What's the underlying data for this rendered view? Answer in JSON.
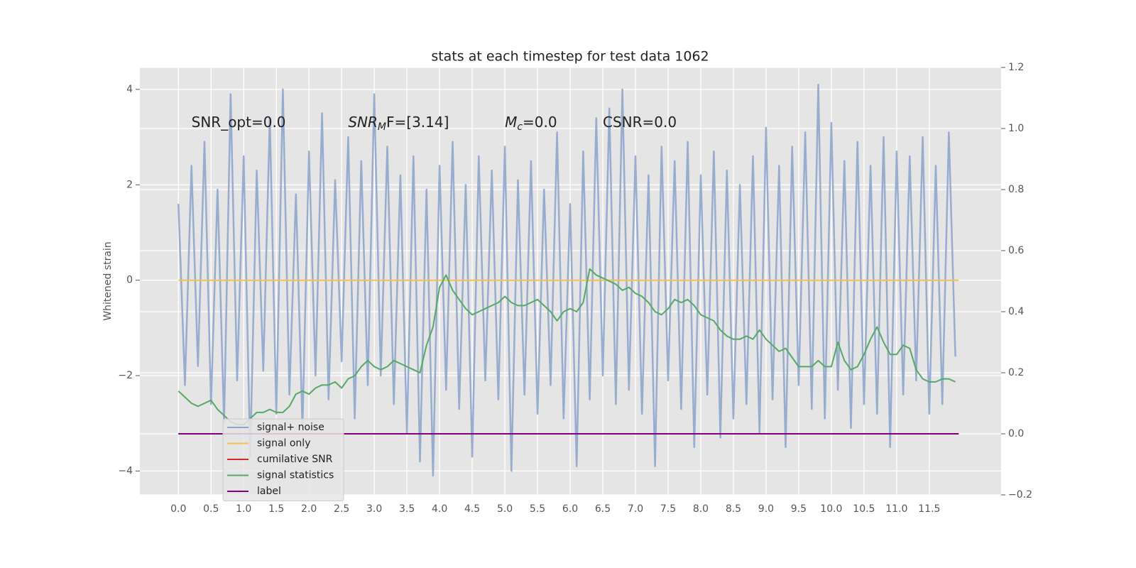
{
  "chart_data": {
    "type": "line",
    "title": "stats at each timestep for test data 1062",
    "ylabel": "Whitened strain",
    "annotations": [
      [
        "SNR_opt=0.0"
      ],
      [
        "SNR",
        "M",
        "F=[3.14]"
      ],
      [
        "M",
        "c",
        "=0.0"
      ],
      [
        "CSNR=0.0"
      ]
    ],
    "x": [
      0,
      0.1,
      0.2,
      0.3,
      0.4,
      0.5,
      0.6,
      0.7,
      0.8,
      0.9,
      1,
      1.1,
      1.2,
      1.3,
      1.4,
      1.5,
      1.6,
      1.7,
      1.8,
      1.9,
      2,
      2.1,
      2.2,
      2.3,
      2.4,
      2.5,
      2.6,
      2.7,
      2.8,
      2.9,
      3,
      3.1,
      3.2,
      3.3,
      3.4,
      3.5,
      3.6,
      3.7,
      3.8,
      3.9,
      4,
      4.1,
      4.2,
      4.3,
      4.4,
      4.5,
      4.6,
      4.7,
      4.8,
      4.9,
      5,
      5.1,
      5.2,
      5.3,
      5.4,
      5.5,
      5.6,
      5.7,
      5.8,
      5.9,
      6,
      6.1,
      6.2,
      6.3,
      6.4,
      6.5,
      6.6,
      6.7,
      6.8,
      6.9,
      7,
      7.1,
      7.2,
      7.3,
      7.4,
      7.5,
      7.6,
      7.7,
      7.8,
      7.9,
      8,
      8.1,
      8.2,
      8.3,
      8.4,
      8.5,
      8.6,
      8.7,
      8.8,
      8.9,
      9,
      9.1,
      9.2,
      9.3,
      9.4,
      9.5,
      9.6,
      9.7,
      9.8,
      9.9,
      10,
      10.1,
      10.2,
      10.3,
      10.4,
      10.5,
      10.6,
      10.7,
      10.8,
      10.9,
      11,
      11.1,
      11.2,
      11.3,
      11.4,
      11.5,
      11.6,
      11.7,
      11.8,
      11.9
    ],
    "series": [
      {
        "name": "signal+ noise",
        "color": "#8fa5cb",
        "values": [
          1.6,
          -2.2,
          2.4,
          -1.8,
          2.9,
          -2.6,
          1.9,
          -3.0,
          3.9,
          -2.1,
          2.6,
          -3.7,
          2.3,
          -1.9,
          3.4,
          -2.8,
          4.0,
          -2.4,
          1.8,
          -3.1,
          2.7,
          -2.0,
          3.5,
          -2.5,
          2.1,
          -1.7,
          3.0,
          -2.9,
          2.5,
          -2.2,
          3.9,
          -2.0,
          2.8,
          -2.6,
          2.2,
          -3.2,
          2.6,
          -3.8,
          1.9,
          -4.1,
          2.4,
          -2.3,
          2.9,
          -2.7,
          2.0,
          -3.7,
          2.6,
          -2.1,
          2.3,
          -2.5,
          2.8,
          -4.0,
          2.1,
          -2.4,
          2.5,
          -2.8,
          1.9,
          -2.2,
          3.1,
          -2.9,
          1.6,
          -3.9,
          2.7,
          -2.5,
          3.4,
          -2.0,
          3.6,
          -2.6,
          4.0,
          -2.3,
          2.6,
          -2.8,
          2.2,
          -3.9,
          2.8,
          -2.1,
          2.5,
          -2.7,
          2.9,
          -3.5,
          2.2,
          -2.4,
          2.7,
          -3.3,
          2.3,
          -2.9,
          2.0,
          -2.6,
          2.6,
          -3.2,
          3.2,
          -2.5,
          2.4,
          -3.5,
          2.8,
          -2.2,
          3.1,
          -2.7,
          4.1,
          -2.9,
          3.3,
          -2.3,
          2.5,
          -3.1,
          2.9,
          -2.6,
          2.4,
          -2.8,
          3.0,
          -3.5,
          2.7,
          -2.4,
          2.6,
          -2.1,
          3.0,
          -2.8,
          2.4,
          -2.6,
          3.1,
          -1.6
        ]
      },
      {
        "name": "signal only",
        "color": "#f5c150",
        "x": [
          0,
          11.95
        ],
        "values": [
          0,
          0
        ]
      },
      {
        "name": "cumilative SNR",
        "color": "#d62728",
        "axis": "y2",
        "x": [
          0,
          11.95
        ],
        "values": [
          0,
          0
        ]
      },
      {
        "name": "signal statistics",
        "color": "#55a868",
        "axis": "y2",
        "values": [
          0.14,
          0.12,
          0.1,
          0.09,
          0.1,
          0.11,
          0.08,
          0.06,
          0.04,
          0.03,
          0.03,
          0.05,
          0.07,
          0.07,
          0.08,
          0.07,
          0.07,
          0.09,
          0.13,
          0.14,
          0.13,
          0.15,
          0.16,
          0.16,
          0.17,
          0.15,
          0.18,
          0.19,
          0.22,
          0.24,
          0.22,
          0.21,
          0.22,
          0.24,
          0.23,
          0.22,
          0.21,
          0.2,
          0.29,
          0.35,
          0.48,
          0.52,
          0.47,
          0.44,
          0.41,
          0.39,
          0.4,
          0.41,
          0.42,
          0.43,
          0.45,
          0.43,
          0.42,
          0.42,
          0.43,
          0.44,
          0.42,
          0.4,
          0.37,
          0.4,
          0.41,
          0.4,
          0.43,
          0.54,
          0.52,
          0.51,
          0.5,
          0.49,
          0.47,
          0.48,
          0.46,
          0.45,
          0.43,
          0.4,
          0.39,
          0.41,
          0.44,
          0.43,
          0.44,
          0.42,
          0.39,
          0.38,
          0.37,
          0.34,
          0.32,
          0.31,
          0.31,
          0.32,
          0.31,
          0.34,
          0.31,
          0.29,
          0.27,
          0.28,
          0.25,
          0.22,
          0.22,
          0.22,
          0.24,
          0.22,
          0.22,
          0.3,
          0.24,
          0.21,
          0.22,
          0.26,
          0.31,
          0.35,
          0.3,
          0.26,
          0.26,
          0.29,
          0.28,
          0.21,
          0.18,
          0.17,
          0.17,
          0.18,
          0.18,
          0.17
        ]
      },
      {
        "name": "label",
        "color": "#800080",
        "axis": "y2",
        "x": [
          0,
          11.95
        ],
        "values": [
          0,
          0
        ]
      }
    ],
    "xlim": [
      -0.59,
      12.6
    ],
    "xticks": [
      {
        "value": 0,
        "label": "0.0"
      },
      0.5,
      {
        "value": 1,
        "label": "1.0"
      },
      1.5,
      {
        "value": 2,
        "label": "2.0"
      },
      2.5,
      {
        "value": 3,
        "label": "3.0"
      },
      3.5,
      {
        "value": 4,
        "label": "4.0"
      },
      4.5,
      {
        "value": 5,
        "label": "5.0"
      },
      5.5,
      {
        "value": 6,
        "label": "6.0"
      },
      6.5,
      {
        "value": 7,
        "label": "7.0"
      },
      7.5,
      {
        "value": 8,
        "label": "8.0"
      },
      8.5,
      {
        "value": 9,
        "label": "9.0"
      },
      9.5,
      {
        "value": 10,
        "label": "10.0"
      },
      10.5,
      {
        "value": 11,
        "label": "11.0"
      },
      11.5
    ],
    "ylim": [
      -4.5,
      4.46
    ],
    "yticks": [
      {
        "value": -4,
        "label": "−4"
      },
      {
        "value": -2,
        "label": "−2"
      },
      0,
      2,
      4
    ],
    "y2lim": [
      -0.2,
      1.2
    ],
    "y2ticks": [
      {
        "value": -0.2,
        "label": "−0.2"
      },
      {
        "value": 0,
        "label": "0.0"
      },
      0.2,
      0.4,
      0.6,
      0.8,
      {
        "value": 1,
        "label": "1.0"
      },
      1.2
    ],
    "grid": true,
    "legend": "lower left"
  }
}
